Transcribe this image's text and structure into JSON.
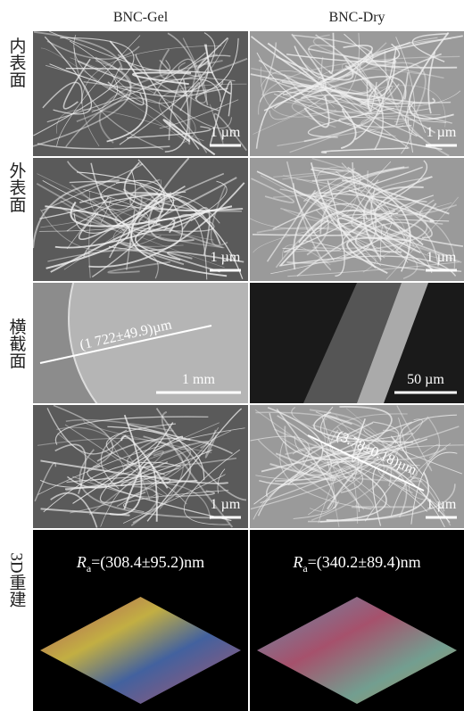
{
  "columns": [
    "BNC-Gel",
    "BNC-Dry"
  ],
  "row_labels": [
    "内表面",
    "外表面",
    "横截面",
    "3D重建"
  ],
  "panels": [
    [
      {
        "scale_bar": "1 µm"
      },
      {
        "scale_bar": "1 µm"
      }
    ],
    [
      {
        "scale_bar": "1 µm"
      },
      {
        "scale_bar": "1 µm"
      }
    ],
    [
      {
        "scale_bar": "1 mm",
        "measurement": "(1 722±49.9)µm"
      },
      {
        "scale_bar": "50 µm"
      }
    ],
    [
      {
        "scale_bar": "1 µm"
      },
      {
        "scale_bar": "1 µm",
        "measurement": "(3.78±0.18)µm"
      }
    ],
    [
      {
        "roughness": {
          "symbol": "R",
          "subscript": "a",
          "value": "=(308.4±95.2)nm"
        }
      },
      {
        "roughness": {
          "symbol": "R",
          "subscript": "a",
          "value": "=(340.2±89.4)nm"
        }
      }
    ]
  ]
}
